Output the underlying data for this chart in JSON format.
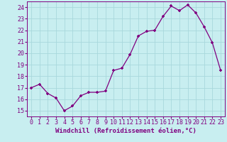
{
  "x": [
    0,
    1,
    2,
    3,
    4,
    5,
    6,
    7,
    8,
    9,
    10,
    11,
    12,
    13,
    14,
    15,
    16,
    17,
    18,
    19,
    20,
    21,
    22,
    23
  ],
  "y": [
    17.0,
    17.3,
    16.5,
    16.1,
    15.0,
    15.4,
    16.3,
    16.6,
    16.6,
    16.7,
    18.5,
    18.7,
    19.9,
    21.5,
    21.9,
    22.0,
    23.2,
    24.1,
    23.7,
    24.2,
    23.5,
    22.3,
    20.9,
    18.5
  ],
  "line_color": "#800080",
  "marker": "+",
  "bg_color": "#c8eef0",
  "grid_color": "#a8d8dc",
  "xlabel": "Windchill (Refroidissement éolien,°C)",
  "xlabel_color": "#800080",
  "tick_color": "#800080",
  "xlim": [
    -0.5,
    23.5
  ],
  "ylim": [
    14.5,
    24.5
  ],
  "yticks": [
    15,
    16,
    17,
    18,
    19,
    20,
    21,
    22,
    23,
    24
  ],
  "xticks": [
    0,
    1,
    2,
    3,
    4,
    5,
    6,
    7,
    8,
    9,
    10,
    11,
    12,
    13,
    14,
    15,
    16,
    17,
    18,
    19,
    20,
    21,
    22,
    23
  ],
  "tick_fontsize": 6,
  "xlabel_fontsize": 6.5
}
